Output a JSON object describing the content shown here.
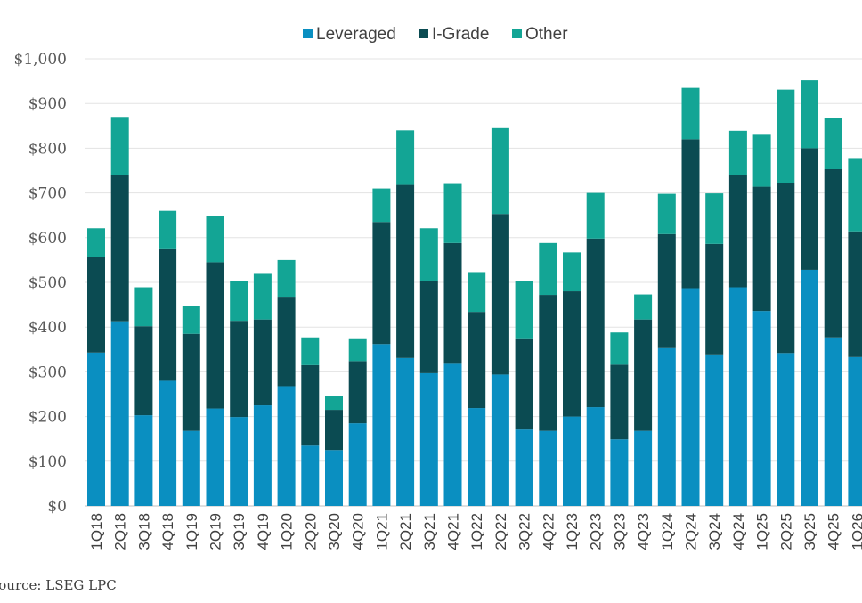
{
  "chart_data": {
    "type": "bar",
    "stacked": true,
    "title": "",
    "xlabel": "",
    "ylabel": "",
    "ylim": [
      0,
      1000
    ],
    "yticks": [
      "$0",
      "$100",
      "$200",
      "$300",
      "$400",
      "$500",
      "$600",
      "$700",
      "$800",
      "$900",
      "$1,000"
    ],
    "grid": true,
    "legend_position": "top",
    "categories": [
      "1Q18",
      "2Q18",
      "3Q18",
      "4Q18",
      "1Q19",
      "2Q19",
      "3Q19",
      "4Q19",
      "1Q20",
      "2Q20",
      "3Q20",
      "4Q20",
      "1Q21",
      "2Q21",
      "3Q21",
      "4Q21",
      "1Q22",
      "2Q22",
      "3Q22",
      "4Q22",
      "1Q23",
      "2Q23",
      "3Q23",
      "4Q23",
      "1Q24",
      "2Q24",
      "3Q24",
      "4Q24",
      "1Q25",
      "2Q25",
      "3Q25",
      "4Q25",
      "1Q26"
    ],
    "series": [
      {
        "name": "Leveraged",
        "color": "#0a8fc1",
        "values": [
          343,
          413,
          203,
          280,
          168,
          218,
          199,
          225,
          268,
          135,
          125,
          185,
          362,
          331,
          297,
          318,
          219,
          294,
          171,
          168,
          200,
          221,
          149,
          168,
          353,
          487,
          337,
          489,
          436,
          342,
          528,
          377,
          333
        ]
      },
      {
        "name": "I-Grade",
        "color": "#0b4b52",
        "values": [
          214,
          327,
          199,
          296,
          217,
          327,
          215,
          192,
          198,
          180,
          90,
          139,
          273,
          387,
          207,
          270,
          215,
          359,
          202,
          304,
          280,
          377,
          167,
          249,
          255,
          333,
          249,
          251,
          278,
          381,
          272,
          376,
          281
        ]
      },
      {
        "name": "Other",
        "color": "#13a595",
        "values": [
          64,
          130,
          87,
          84,
          62,
          103,
          89,
          102,
          84,
          62,
          30,
          49,
          75,
          122,
          117,
          132,
          89,
          192,
          130,
          116,
          87,
          102,
          72,
          56,
          90,
          115,
          113,
          99,
          116,
          208,
          152,
          115,
          164
        ]
      }
    ],
    "source": "Source: LSEG LPC"
  }
}
